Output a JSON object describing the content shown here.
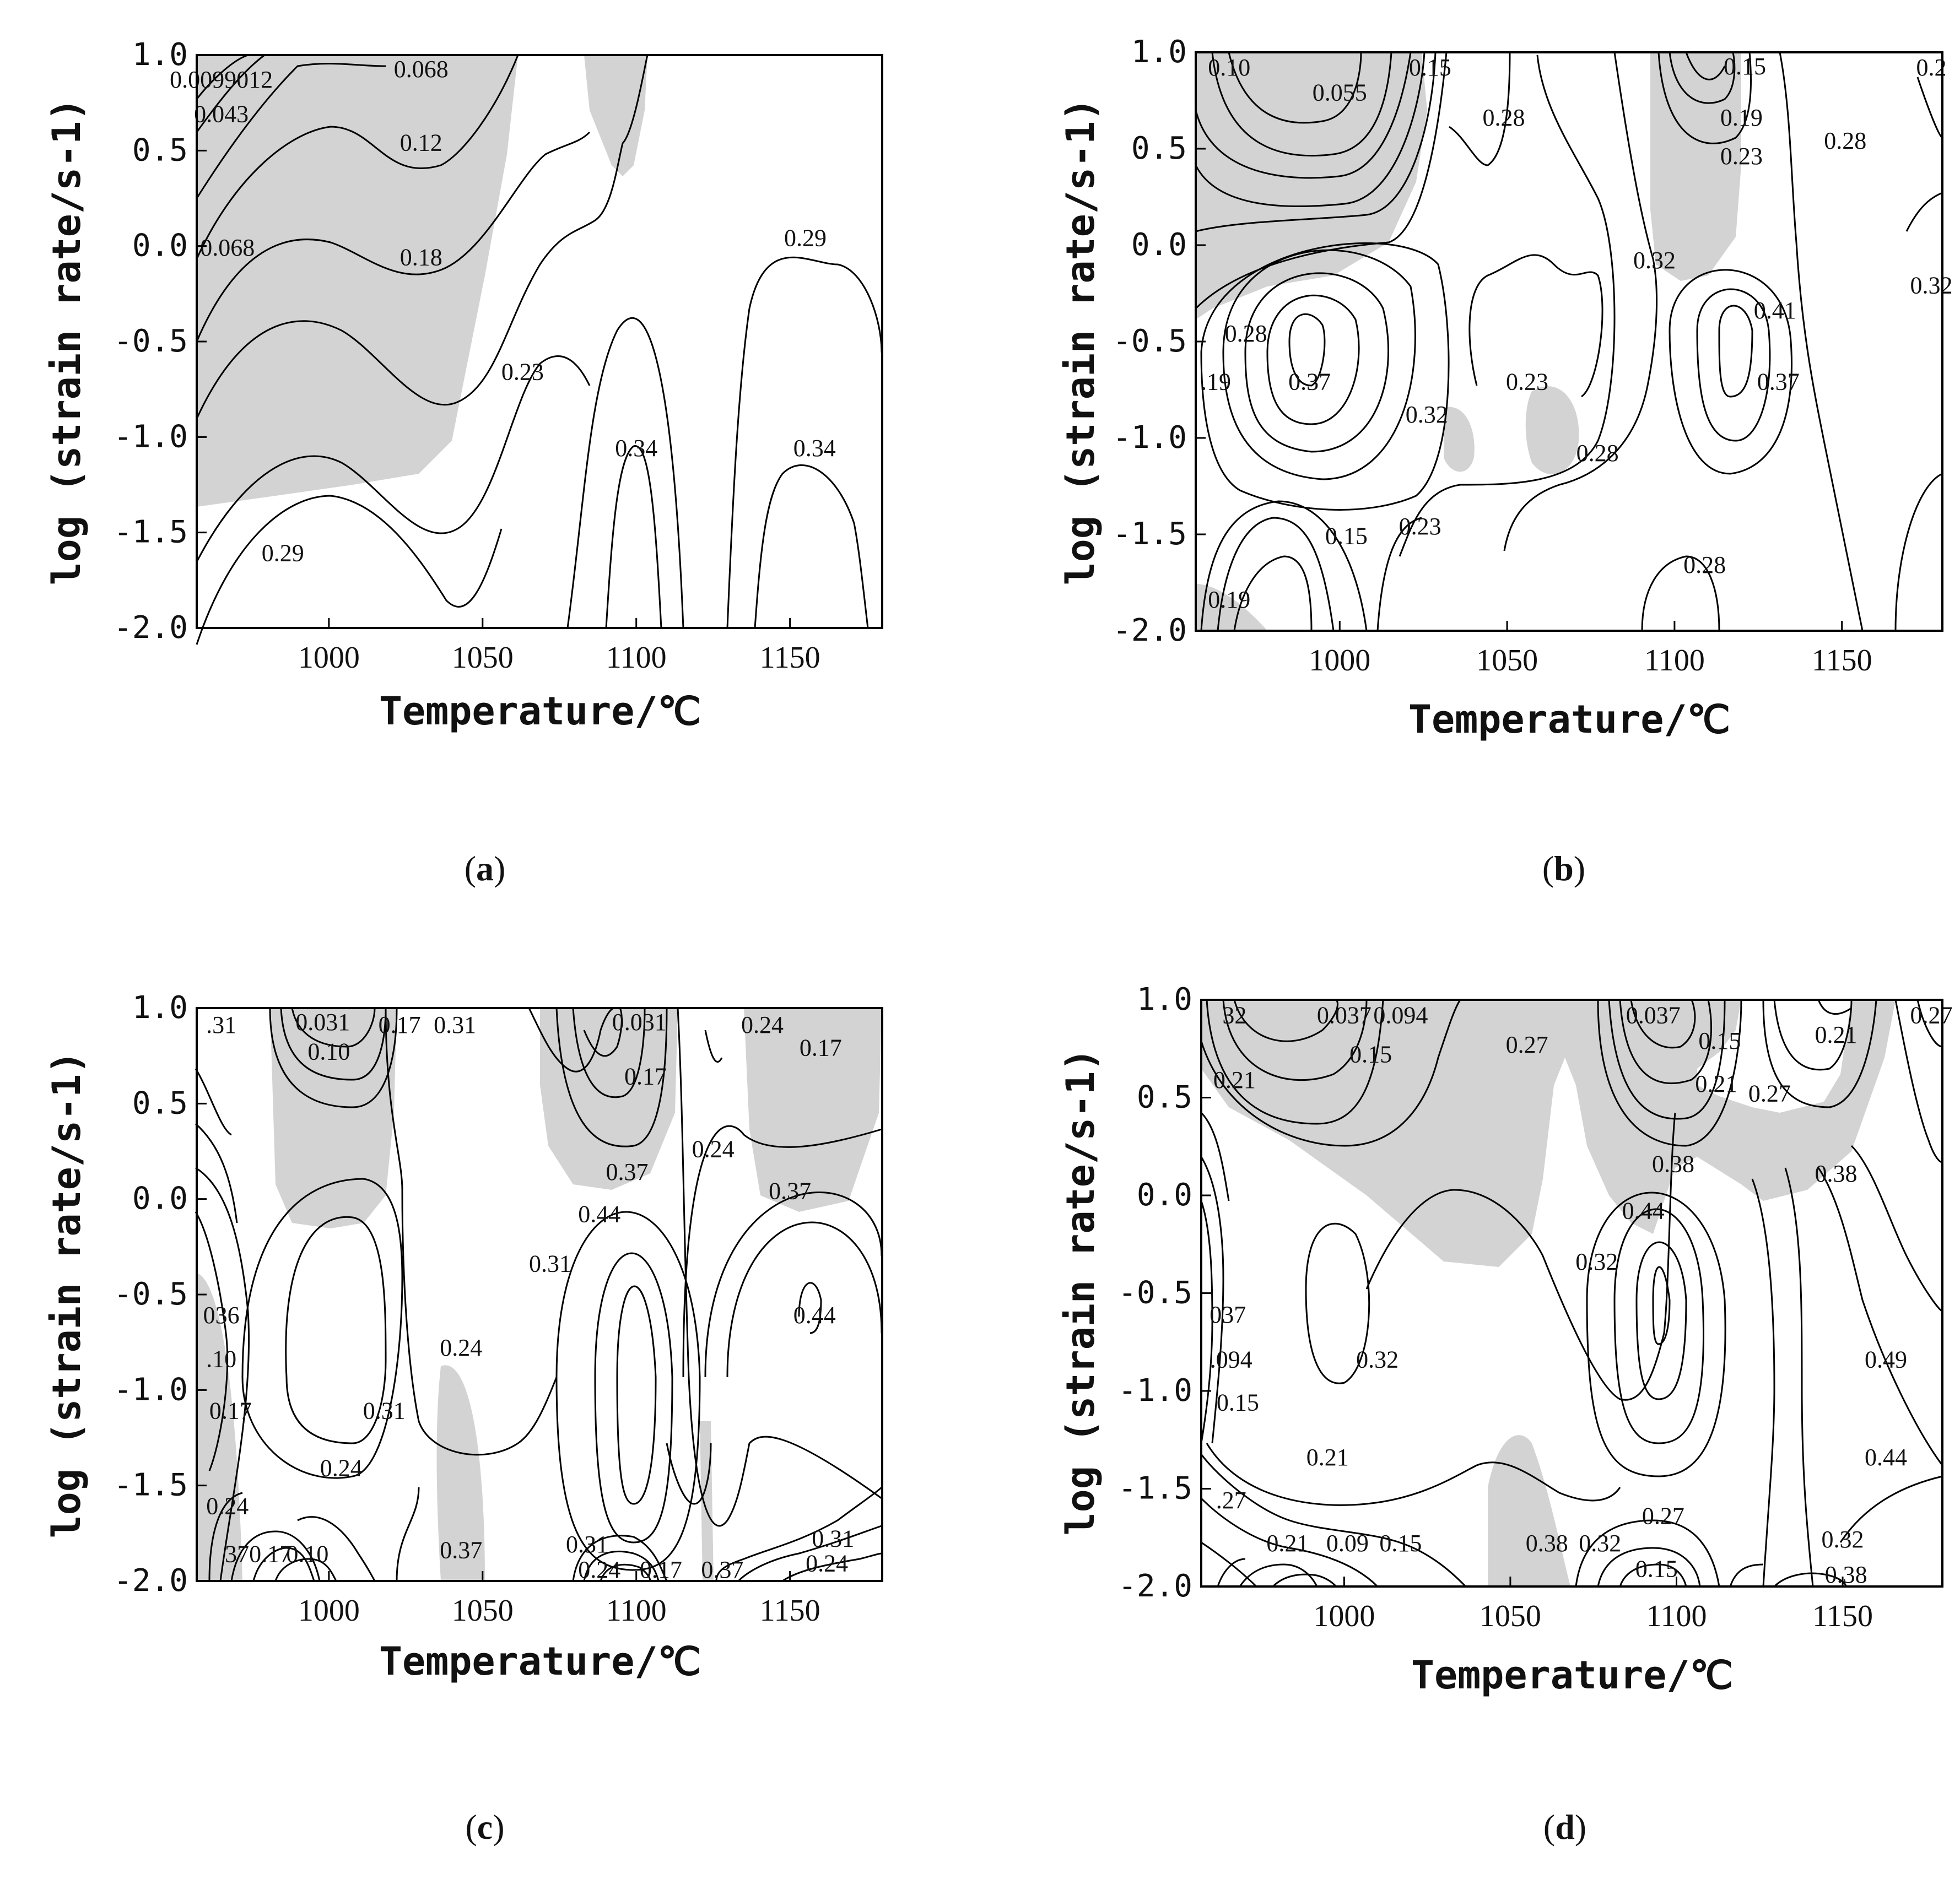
{
  "figure": {
    "panels": [
      {
        "id": "a",
        "caption": "a"
      },
      {
        "id": "b",
        "caption": "b"
      },
      {
        "id": "c",
        "caption": "c"
      },
      {
        "id": "d",
        "caption": "d"
      }
    ],
    "xlabel": "Temperature/℃",
    "ylabel": "log (strain rate/s-1)",
    "shade_color": "#d3d3d3",
    "line_color": "#000000"
  },
  "chart_data": [
    {
      "type": "contour",
      "panel": "a",
      "xlabel": "Temperature/℃",
      "ylabel": "log (strain rate/s-1)",
      "xlim": [
        957,
        1180
      ],
      "ylim": [
        -2.0,
        1.0
      ],
      "xticks": [
        1000,
        1050,
        1100,
        1150
      ],
      "xtick_labels": [
        "1000",
        "1050",
        "1100",
        "1150"
      ],
      "yticks": [
        -2.0,
        -1.5,
        -1.0,
        -0.5,
        0.0,
        0.5,
        1.0
      ],
      "ytick_labels": [
        "-2.0",
        "-1.5",
        "-1.0",
        "-0.5",
        "0.0",
        "0.5",
        "1.0"
      ],
      "contour_labels": [
        {
          "text": "0.068",
          "x": 1030,
          "y": 0.95
        },
        {
          "text": "0.0099012",
          "x": 965,
          "y": 0.83
        },
        {
          "text": "0.043",
          "x": 965,
          "y": 0.65
        },
        {
          "text": "0.12",
          "x": 1030,
          "y": 0.5
        },
        {
          "text": "0.068",
          "x": 967,
          "y": -0.05
        },
        {
          "text": "0.18",
          "x": 1030,
          "y": -0.1
        },
        {
          "text": "0.29",
          "x": 1155,
          "y": 0.0
        },
        {
          "text": "0.23",
          "x": 1063,
          "y": -0.7
        },
        {
          "text": "0.34",
          "x": 1100,
          "y": -1.1
        },
        {
          "text": "0.34",
          "x": 1158,
          "y": -1.1
        },
        {
          "text": "0.29",
          "x": 985,
          "y": -1.65
        }
      ],
      "grid": false
    },
    {
      "type": "contour",
      "panel": "b",
      "xlabel": "Temperature/℃",
      "ylabel": "log (strain rate/s-1)",
      "xlim": [
        957,
        1180
      ],
      "ylim": [
        -2.0,
        1.0
      ],
      "xticks": [
        1000,
        1050,
        1100,
        1150
      ],
      "xtick_labels": [
        "1000",
        "1050",
        "1100",
        "1150"
      ],
      "yticks": [
        -2.0,
        -1.5,
        -1.0,
        -0.5,
        0.0,
        0.5,
        1.0
      ],
      "ytick_labels": [
        "-2.0",
        "-1.5",
        "-1.0",
        "-0.5",
        "0.0",
        "0.5",
        "1.0"
      ],
      "contour_labels": [
        {
          "text": "0.10",
          "x": 967,
          "y": 0.88
        },
        {
          "text": "0.055",
          "x": 1000,
          "y": 0.75
        },
        {
          "text": "0.15",
          "x": 1027,
          "y": 0.88
        },
        {
          "text": "0.28",
          "x": 1049,
          "y": 0.62
        },
        {
          "text": "0.15",
          "x": 1121,
          "y": 0.92
        },
        {
          "text": "0.19",
          "x": 1120,
          "y": 0.62
        },
        {
          "text": "0.23",
          "x": 1120,
          "y": 0.42
        },
        {
          "text": "0.28",
          "x": 1151,
          "y": 0.5
        },
        {
          "text": "0.2",
          "x": 1177,
          "y": 0.88
        },
        {
          "text": "0.32",
          "x": 1094,
          "y": -0.12
        },
        {
          "text": "0.32",
          "x": 1177,
          "y": -0.25
        },
        {
          "text": "0.41",
          "x": 1130,
          "y": -0.38
        },
        {
          "text": "0.28",
          "x": 972,
          "y": -0.5
        },
        {
          "text": ".19",
          "x": 963,
          "y": -0.75
        },
        {
          "text": "0.37",
          "x": 991,
          "y": -0.75
        },
        {
          "text": "0.32",
          "x": 1026,
          "y": -0.92
        },
        {
          "text": "0.23",
          "x": 1056,
          "y": -0.75
        },
        {
          "text": "0.37",
          "x": 1131,
          "y": -0.75
        },
        {
          "text": "0.28",
          "x": 1077,
          "y": -1.12
        },
        {
          "text": "0.15",
          "x": 1002,
          "y": -1.55
        },
        {
          "text": "0.23",
          "x": 1024,
          "y": -1.5
        },
        {
          "text": "0.28",
          "x": 1109,
          "y": -1.7
        },
        {
          "text": "0.19",
          "x": 967,
          "y": -1.88
        }
      ],
      "grid": false
    },
    {
      "type": "contour",
      "panel": "c",
      "xlabel": "Temperature/℃",
      "ylabel": "log (strain rate/s-1)",
      "xlim": [
        957,
        1180
      ],
      "ylim": [
        -2.0,
        1.0
      ],
      "xticks": [
        1000,
        1050,
        1100,
        1150
      ],
      "xtick_labels": [
        "1000",
        "1050",
        "1100",
        "1150"
      ],
      "yticks": [
        -2.0,
        -1.5,
        -1.0,
        -0.5,
        0.0,
        0.5,
        1.0
      ],
      "ytick_labels": [
        "-2.0",
        "-1.5",
        "-1.0",
        "-0.5",
        "0.0",
        "0.5",
        "1.0"
      ],
      "contour_labels": [
        {
          "text": "0.031",
          "x": 998,
          "y": 0.93
        },
        {
          "text": ".31",
          "x": 965,
          "y": 0.87
        },
        {
          "text": "0.10",
          "x": 1000,
          "y": 0.73
        },
        {
          "text": "0.17",
          "x": 1023,
          "y": 0.87
        },
        {
          "text": "0.31",
          "x": 1041,
          "y": 0.87
        },
        {
          "text": "0.031",
          "x": 1101,
          "y": 0.89
        },
        {
          "text": "0.24",
          "x": 1141,
          "y": 0.87
        },
        {
          "text": "0.17",
          "x": 1160,
          "y": 0.75
        },
        {
          "text": "0.17",
          "x": 1103,
          "y": 0.6
        },
        {
          "text": "0.24",
          "x": 1125,
          "y": 0.22
        },
        {
          "text": "0.37",
          "x": 1097,
          "y": 0.1
        },
        {
          "text": "0.37",
          "x": 1150,
          "y": 0.0
        },
        {
          "text": "0.44",
          "x": 1088,
          "y": -0.12
        },
        {
          "text": "0.31",
          "x": 1072,
          "y": -0.38
        },
        {
          "text": "036",
          "x": 965,
          "y": -0.65
        },
        {
          "text": "0.44",
          "x": 1158,
          "y": -0.65
        },
        {
          "text": "0.24",
          "x": 1043,
          "y": -0.82
        },
        {
          "text": ".10",
          "x": 965,
          "y": -0.88
        },
        {
          "text": "0.31",
          "x": 1018,
          "y": -1.15
        },
        {
          "text": "0.17",
          "x": 968,
          "y": -1.15
        },
        {
          "text": "0.24",
          "x": 1004,
          "y": -1.45
        },
        {
          "text": "0.24",
          "x": 967,
          "y": -1.65
        },
        {
          "text": "0.37",
          "x": 1043,
          "y": -1.88
        },
        {
          "text": "0.31",
          "x": 1084,
          "y": -1.85
        },
        {
          "text": "0.31",
          "x": 1164,
          "y": -1.82
        },
        {
          "text": "370.17",
          "x": 977,
          "y": -1.9
        },
        {
          "text": "0.10",
          "x": 993,
          "y": -1.9
        },
        {
          "text": "0.24",
          "x": 1088,
          "y": -2.0
        },
        {
          "text": "0.17",
          "x": 1108,
          "y": -2.0
        },
        {
          "text": "0.37",
          "x": 1128,
          "y": -2.0
        },
        {
          "text": "0.24",
          "x": 1162,
          "y": -1.95
        }
      ],
      "grid": false
    },
    {
      "type": "contour",
      "panel": "d",
      "xlabel": "Temperature/℃",
      "ylabel": "log (strain rate/s-1)",
      "xlim": [
        957,
        1180
      ],
      "ylim": [
        -2.0,
        1.0
      ],
      "xticks": [
        1000,
        1050,
        1100,
        1150
      ],
      "xtick_labels": [
        "1000",
        "1050",
        "1100",
        "1150"
      ],
      "yticks": [
        -2.0,
        -1.5,
        -1.0,
        -0.5,
        0.0,
        0.5,
        1.0
      ],
      "ytick_labels": [
        "-2.0",
        "-1.5",
        "-1.0",
        "-0.5",
        "0.0",
        "0.5",
        "1.0"
      ],
      "contour_labels": [
        {
          "text": "32",
          "x": 967,
          "y": 0.88
        },
        {
          "text": "0.037",
          "x": 1000,
          "y": 0.88
        },
        {
          "text": "0.094",
          "x": 1017,
          "y": 0.88
        },
        {
          "text": "0.15",
          "x": 1008,
          "y": 0.68
        },
        {
          "text": "0.27",
          "x": 1055,
          "y": 0.73
        },
        {
          "text": "0.037",
          "x": 1093,
          "y": 0.88
        },
        {
          "text": "0.15",
          "x": 1113,
          "y": 0.75
        },
        {
          "text": "0.21",
          "x": 1112,
          "y": 0.53
        },
        {
          "text": "0.27",
          "x": 1128,
          "y": 0.48
        },
        {
          "text": "0.21",
          "x": 1148,
          "y": 0.78
        },
        {
          "text": "0.27",
          "x": 1177,
          "y": 0.88
        },
        {
          "text": "0.21",
          "x": 967,
          "y": 0.55
        },
        {
          "text": "0.38",
          "x": 1099,
          "y": 0.12
        },
        {
          "text": "0.38",
          "x": 1148,
          "y": 0.07
        },
        {
          "text": "0.44",
          "x": 1090,
          "y": -0.12
        },
        {
          "text": "0.32",
          "x": 1076,
          "y": -0.38
        },
        {
          "text": "037",
          "x": 965,
          "y": -0.65
        },
        {
          "text": "0.32",
          "x": 1010,
          "y": -0.88
        },
        {
          "text": "0.49",
          "x": 1163,
          "y": -0.88
        },
        {
          "text": ".094",
          "x": 966,
          "y": -0.88
        },
        {
          "text": "0.15",
          "x": 968,
          "y": -1.1
        },
        {
          "text": "0.21",
          "x": 995,
          "y": -1.38
        },
        {
          "text": "0.44",
          "x": 1163,
          "y": -1.38
        },
        {
          "text": ".27",
          "x": 966,
          "y": -1.6
        },
        {
          "text": "0.27",
          "x": 1096,
          "y": -1.68
        },
        {
          "text": "0.32",
          "x": 1150,
          "y": -1.8
        },
        {
          "text": "0.21",
          "x": 983,
          "y": -1.82
        },
        {
          "text": "0.09",
          "x": 1001,
          "y": -1.82
        },
        {
          "text": "0.15",
          "x": 1017,
          "y": -1.82
        },
        {
          "text": "0.38",
          "x": 1061,
          "y": -1.82
        },
        {
          "text": "0.32",
          "x": 1077,
          "y": -1.82
        },
        {
          "text": "0.15",
          "x": 1094,
          "y": -1.95
        },
        {
          "text": "0.38",
          "x": 1151,
          "y": -1.98
        }
      ],
      "grid": false
    }
  ]
}
